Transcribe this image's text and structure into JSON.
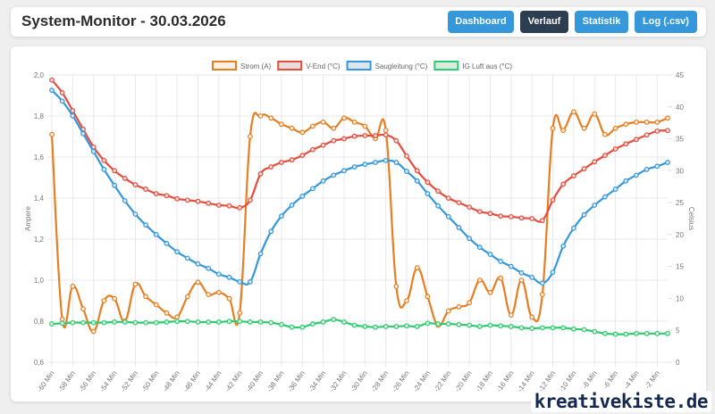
{
  "header": {
    "title": "System-Monitor - 30.03.2026",
    "nav": [
      {
        "label": "Dashboard",
        "active": false
      },
      {
        "label": "Verlauf",
        "active": true
      },
      {
        "label": "Statistik",
        "active": false
      },
      {
        "label": "Log (.csv)",
        "active": false
      }
    ]
  },
  "colors": {
    "primary": "#3498db",
    "active": "#2c3e50"
  },
  "watermark": "kreativekiste.de",
  "chart_data": {
    "type": "line",
    "legend_position": "top",
    "grid": true,
    "x": [
      "-60 Min",
      "-59 Min",
      "-58 Min",
      "-57 Min",
      "-56 Min",
      "-55 Min",
      "-54 Min",
      "-53 Min",
      "-52 Min",
      "-51 Min",
      "-50 Min",
      "-49 Min",
      "-48 Min",
      "-47 Min",
      "-46 Min",
      "-45 Min",
      "-44 Min",
      "-43 Min",
      "-42 Min",
      "-41 Min",
      "-40 Min",
      "-39 Min",
      "-38 Min",
      "-37 Min",
      "-36 Min",
      "-35 Min",
      "-34 Min",
      "-33 Min",
      "-32 Min",
      "-31 Min",
      "-30 Min",
      "-29 Min",
      "-28 Min",
      "-27 Min",
      "-26 Min",
      "-25 Min",
      "-24 Min",
      "-23 Min",
      "-22 Min",
      "-21 Min",
      "-20 Min",
      "-19 Min",
      "-18 Min",
      "-17 Min",
      "-16 Min",
      "-15 Min",
      "-14 Min",
      "-13 Min",
      "-12 Min",
      "-11 Min",
      "-10 Min",
      "-9 Min",
      "-8 Min",
      "-7 Min",
      "-6 Min",
      "-5 Min",
      "-4 Min",
      "-3 Min",
      "-2 Min",
      "-1 Min"
    ],
    "x_tick_labels": [
      "-60 Min",
      "-58 Min",
      "-56 Min",
      "-54 Min",
      "-52 Min",
      "-50 Min",
      "-48 Min",
      "-46 Min",
      "-44 Min",
      "-42 Min",
      "-40 Min",
      "-38 Min",
      "-36 Min",
      "-34 Min",
      "-32 Min",
      "-30 Min",
      "-28 Min",
      "-26 Min",
      "-24 Min",
      "-22 Min",
      "-20 Min",
      "-18 Min",
      "-16 Min",
      "-14 Min",
      "-12 Min",
      "-10 Min",
      "-8 Min",
      "-6 Min",
      "-4 Min",
      "-2 Min"
    ],
    "y_left": {
      "label": "Ampere",
      "min": 0.6,
      "max": 2.0,
      "ticks": [
        "2,0",
        "1,8",
        "1,6",
        "1,4",
        "1,2",
        "1,0",
        "0,8",
        "0,6"
      ]
    },
    "y_right": {
      "label": "Celsius",
      "min": 0,
      "max": 45,
      "ticks": [
        "45",
        "40",
        "35",
        "30",
        "25",
        "20",
        "15",
        "10",
        "5",
        "0"
      ]
    },
    "series": [
      {
        "name": "Strom (A)",
        "axis": "left",
        "color": "#e67e22",
        "fill": "#fdf0e3",
        "values": [
          1.71,
          0.81,
          0.97,
          0.86,
          0.75,
          0.9,
          0.91,
          0.8,
          0.98,
          0.92,
          0.88,
          0.84,
          0.82,
          0.92,
          0.99,
          0.93,
          0.94,
          0.91,
          0.84,
          1.7,
          1.8,
          1.79,
          1.76,
          1.74,
          1.72,
          1.75,
          1.77,
          1.74,
          1.79,
          1.77,
          1.75,
          1.69,
          1.73,
          0.97,
          0.9,
          1.06,
          0.92,
          0.78,
          0.85,
          0.87,
          0.89,
          1.0,
          0.94,
          1.01,
          0.83,
          1.0,
          0.82,
          0.93,
          1.74,
          1.73,
          1.82,
          1.74,
          1.81,
          1.71,
          1.74,
          1.76,
          1.77,
          1.77,
          1.77,
          1.79
        ]
      },
      {
        "name": "V-End (°C)",
        "axis": "right",
        "color": "#e74c3c",
        "fill": "#e8dcdc",
        "values": [
          44.2,
          42.2,
          39.4,
          36.5,
          33.7,
          31.6,
          30.0,
          28.8,
          27.8,
          27.1,
          26.4,
          26.1,
          25.6,
          25.4,
          25.2,
          24.9,
          24.6,
          24.5,
          24.2,
          25.4,
          29.5,
          30.6,
          31.3,
          31.7,
          32.4,
          33.3,
          34.0,
          34.7,
          35.0,
          35.4,
          35.5,
          35.5,
          35.6,
          34.7,
          32.3,
          30.0,
          28.2,
          26.8,
          25.7,
          25.0,
          24.3,
          23.6,
          23.3,
          22.9,
          22.8,
          22.6,
          22.5,
          22.2,
          25.4,
          27.9,
          29.2,
          30.3,
          31.4,
          32.4,
          33.4,
          34.2,
          34.9,
          35.6,
          36.2,
          36.3
        ]
      },
      {
        "name": "Saugleitung (°C)",
        "axis": "right",
        "color": "#3498db",
        "fill": "#dbe6ef",
        "values": [
          42.6,
          40.9,
          38.6,
          35.8,
          33.0,
          30.2,
          27.7,
          25.3,
          23.2,
          21.5,
          20.0,
          18.6,
          17.3,
          16.3,
          15.4,
          14.7,
          13.8,
          13.3,
          12.6,
          12.6,
          17.0,
          20.5,
          22.9,
          24.6,
          26.0,
          27.2,
          28.4,
          29.3,
          30.0,
          30.6,
          31.0,
          31.3,
          31.6,
          31.3,
          29.9,
          28.4,
          26.4,
          24.5,
          22.8,
          21.1,
          19.4,
          18.0,
          16.9,
          15.8,
          15.0,
          14.0,
          13.3,
          12.4,
          14.1,
          18.2,
          21.0,
          23.1,
          24.6,
          25.9,
          27.1,
          28.4,
          29.3,
          30.2,
          30.7,
          31.3
        ]
      },
      {
        "name": "IG Luft aus (°C)",
        "axis": "right",
        "color": "#2ecc71",
        "fill": "#dcebe0",
        "values": [
          6.0,
          6.1,
          6.2,
          6.2,
          6.2,
          6.2,
          6.3,
          6.3,
          6.2,
          6.2,
          6.2,
          6.3,
          6.4,
          6.4,
          6.3,
          6.3,
          6.3,
          6.4,
          6.4,
          6.3,
          6.3,
          6.2,
          5.9,
          5.5,
          5.5,
          6.0,
          6.3,
          6.7,
          6.3,
          5.8,
          5.6,
          5.5,
          5.6,
          5.6,
          5.7,
          5.6,
          6.1,
          6.0,
          6.0,
          5.9,
          5.8,
          5.6,
          5.8,
          5.7,
          5.6,
          5.4,
          5.3,
          5.4,
          5.4,
          5.4,
          5.2,
          5.1,
          4.8,
          4.5,
          4.4,
          4.4,
          4.5,
          4.5,
          4.5,
          4.5
        ]
      }
    ]
  }
}
